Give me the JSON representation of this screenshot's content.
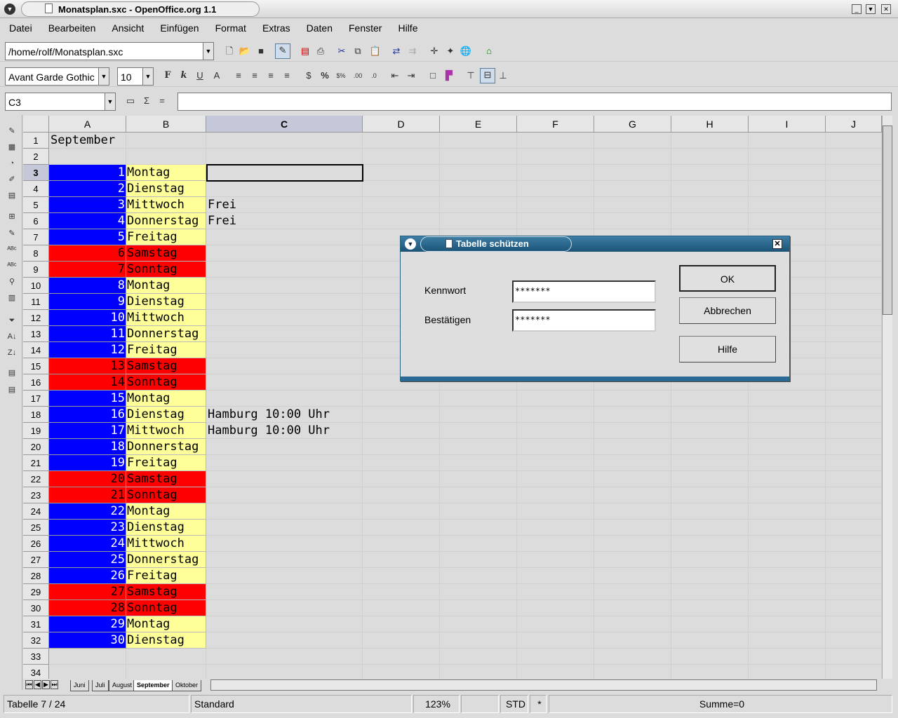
{
  "window": {
    "title": "Monatsplan.sxc - OpenOffice.org 1.1"
  },
  "menu": [
    "Datei",
    "Bearbeiten",
    "Ansicht",
    "Einfügen",
    "Format",
    "Extras",
    "Daten",
    "Fenster",
    "Hilfe"
  ],
  "toolbar": {
    "url": "/home/rolf/Monatsplan.sxc",
    "font": "Avant Garde Gothic",
    "size": "10",
    "bold": "F",
    "italic": "k",
    "underline": "U"
  },
  "formula": {
    "cell_ref": "C3",
    "sum_icon": "Σ",
    "equals": "=",
    "value": ""
  },
  "columns": [
    "A",
    "B",
    "C",
    "D",
    "E",
    "F",
    "G",
    "H",
    "I",
    "J"
  ],
  "cells": {
    "a1": "September",
    "rows": [
      {
        "r": 3,
        "d": "1",
        "n": "Montag"
      },
      {
        "r": 4,
        "d": "2",
        "n": "Dienstag"
      },
      {
        "r": 5,
        "d": "3",
        "n": "Mittwoch",
        "c": "Frei"
      },
      {
        "r": 6,
        "d": "4",
        "n": "Donnerstag",
        "c": "Frei"
      },
      {
        "r": 7,
        "d": "5",
        "n": "Freitag"
      },
      {
        "r": 8,
        "d": "6",
        "n": "Samstag",
        "w": true
      },
      {
        "r": 9,
        "d": "7",
        "n": "Sonntag",
        "w": true
      },
      {
        "r": 10,
        "d": "8",
        "n": "Montag"
      },
      {
        "r": 11,
        "d": "9",
        "n": "Dienstag"
      },
      {
        "r": 12,
        "d": "10",
        "n": "Mittwoch"
      },
      {
        "r": 13,
        "d": "11",
        "n": "Donnerstag"
      },
      {
        "r": 14,
        "d": "12",
        "n": "Freitag"
      },
      {
        "r": 15,
        "d": "13",
        "n": "Samstag",
        "w": true
      },
      {
        "r": 16,
        "d": "14",
        "n": "Sonntag",
        "w": true
      },
      {
        "r": 17,
        "d": "15",
        "n": "Montag"
      },
      {
        "r": 18,
        "d": "16",
        "n": "Dienstag",
        "c": "Hamburg 10:00 Uhr"
      },
      {
        "r": 19,
        "d": "17",
        "n": "Mittwoch",
        "c": "Hamburg 10:00 Uhr"
      },
      {
        "r": 20,
        "d": "18",
        "n": "Donnerstag"
      },
      {
        "r": 21,
        "d": "19",
        "n": "Freitag"
      },
      {
        "r": 22,
        "d": "20",
        "n": "Samstag",
        "w": true
      },
      {
        "r": 23,
        "d": "21",
        "n": "Sonntag",
        "w": true
      },
      {
        "r": 24,
        "d": "22",
        "n": "Montag"
      },
      {
        "r": 25,
        "d": "23",
        "n": "Dienstag"
      },
      {
        "r": 26,
        "d": "24",
        "n": "Mittwoch"
      },
      {
        "r": 27,
        "d": "25",
        "n": "Donnerstag"
      },
      {
        "r": 28,
        "d": "26",
        "n": "Freitag"
      },
      {
        "r": 29,
        "d": "27",
        "n": "Samstag",
        "w": true
      },
      {
        "r": 30,
        "d": "28",
        "n": "Sonntag",
        "w": true
      },
      {
        "r": 31,
        "d": "29",
        "n": "Montag"
      },
      {
        "r": 32,
        "d": "30",
        "n": "Dienstag"
      }
    ]
  },
  "colors": {
    "weekday_day": "#0000ff",
    "weekend": "#ff0000",
    "weekday_name": "#ffff99"
  },
  "sheet_tabs": [
    "Juni",
    "Juli",
    "August",
    "September",
    "Oktober"
  ],
  "active_tab": "September",
  "status": {
    "sheet": "Tabelle 7 / 24",
    "style": "Standard",
    "zoom": "123%",
    "mode": "STD",
    "modified": "*",
    "sum": "Summe=0"
  },
  "dialog": {
    "title": "Tabelle schützen",
    "password_label": "Kennwort",
    "password_value": "*******",
    "confirm_label": "Bestätigen",
    "confirm_value": "*******",
    "ok": "OK",
    "cancel": "Abbrechen",
    "help": "Hilfe"
  }
}
